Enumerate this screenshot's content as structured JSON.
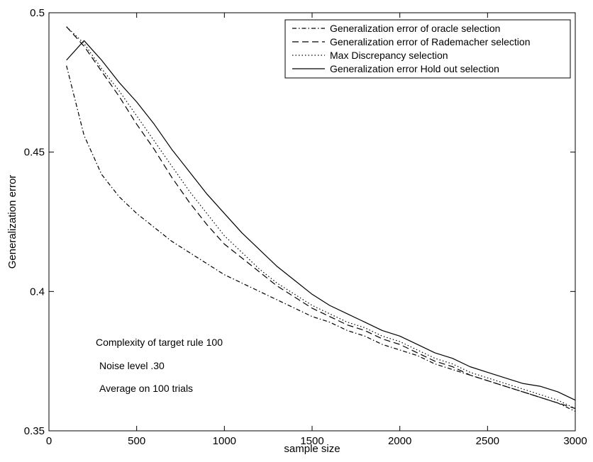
{
  "chart_data": {
    "type": "line",
    "title": "",
    "xlabel": "sample size",
    "ylabel": "Generalization error",
    "xlim": [
      0,
      3000
    ],
    "ylim": [
      0.35,
      0.5
    ],
    "xticks": [
      0,
      500,
      1000,
      1500,
      2000,
      2500,
      3000
    ],
    "xtick_labels": [
      "0",
      "500",
      "1000",
      "1500",
      "2000",
      "2500",
      "3000"
    ],
    "yticks": [
      0.35,
      0.4,
      0.45,
      0.5
    ],
    "ytick_labels": [
      "0.35",
      "0.4",
      "0.45",
      "0.5"
    ],
    "grid": false,
    "legend_position": "top-right",
    "x": [
      100,
      200,
      300,
      400,
      500,
      600,
      700,
      800,
      900,
      1000,
      1100,
      1200,
      1300,
      1400,
      1500,
      1600,
      1700,
      1800,
      1900,
      2000,
      2100,
      2200,
      2300,
      2400,
      2500,
      2600,
      2700,
      2800,
      2900,
      3000
    ],
    "series": [
      {
        "name": "Generalization error of oracle selection",
        "style": "dashdot",
        "values": [
          0.481,
          0.456,
          0.442,
          0.434,
          0.428,
          0.423,
          0.418,
          0.414,
          0.41,
          0.406,
          0.403,
          0.4,
          0.397,
          0.394,
          0.391,
          0.389,
          0.386,
          0.384,
          0.381,
          0.379,
          0.377,
          0.374,
          0.372,
          0.37,
          0.368,
          0.366,
          0.364,
          0.362,
          0.36,
          0.357
        ]
      },
      {
        "name": "Generalization error of Rademacher selection",
        "style": "dashed",
        "values": [
          0.495,
          0.488,
          0.479,
          0.47,
          0.46,
          0.451,
          0.441,
          0.432,
          0.424,
          0.417,
          0.412,
          0.407,
          0.402,
          0.398,
          0.394,
          0.391,
          0.388,
          0.386,
          0.383,
          0.381,
          0.378,
          0.375,
          0.373,
          0.37,
          0.368,
          0.366,
          0.364,
          0.362,
          0.36,
          0.358
        ]
      },
      {
        "name": "Max Discrepancy selection",
        "style": "dotted",
        "values": [
          0.495,
          0.489,
          0.48,
          0.472,
          0.463,
          0.454,
          0.445,
          0.436,
          0.428,
          0.42,
          0.414,
          0.408,
          0.403,
          0.399,
          0.395,
          0.392,
          0.389,
          0.387,
          0.384,
          0.382,
          0.379,
          0.376,
          0.374,
          0.371,
          0.369,
          0.367,
          0.365,
          0.363,
          0.361,
          0.358
        ]
      },
      {
        "name": "Generalization error Hold out selection",
        "style": "solid",
        "values": [
          0.483,
          0.49,
          0.483,
          0.475,
          0.468,
          0.46,
          0.451,
          0.443,
          0.435,
          0.428,
          0.421,
          0.415,
          0.409,
          0.404,
          0.399,
          0.395,
          0.392,
          0.389,
          0.386,
          0.384,
          0.381,
          0.378,
          0.376,
          0.373,
          0.371,
          0.369,
          0.367,
          0.366,
          0.364,
          0.361
        ]
      }
    ],
    "annotations": [
      "Complexity of target rule 100",
      "Noise level .30",
      "Average on 100 trials"
    ]
  }
}
